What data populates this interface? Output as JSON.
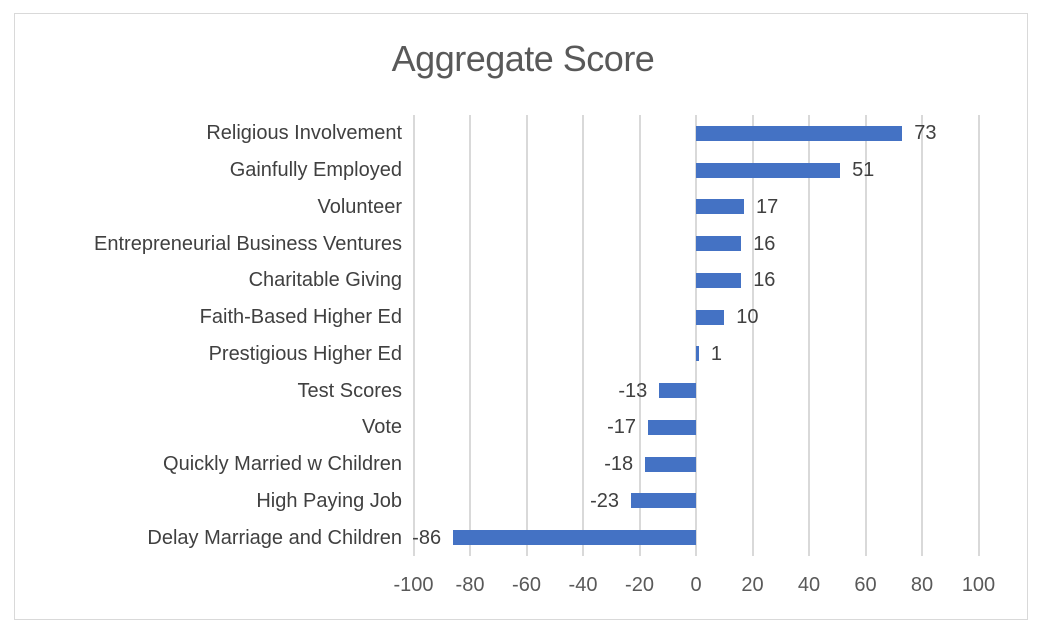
{
  "window": {
    "background": "#FFFFFF",
    "border_color": "#D9D9D9"
  },
  "chart_data": {
    "type": "bar",
    "orientation": "horizontal",
    "title": "Aggregate Score",
    "categories": [
      "Religious Involvement",
      "Gainfully Employed",
      "Volunteer",
      "Entrepreneurial Business Ventures",
      "Charitable Giving",
      "Faith-Based Higher Ed",
      "Prestigious Higher Ed",
      "Test Scores",
      "Vote",
      "Quickly Married w Children",
      "High Paying Job",
      "Delay Marriage and Children"
    ],
    "values": [
      73,
      51,
      17,
      16,
      16,
      10,
      1,
      -13,
      -17,
      -18,
      -23,
      -86
    ],
    "data_labels": [
      "73",
      "51",
      "17",
      "16",
      "16",
      "10",
      "1",
      "-13",
      "-17",
      "-18",
      "-23",
      "-86"
    ],
    "xlim": [
      -100,
      100
    ],
    "xticks": [
      -100,
      -80,
      -60,
      -40,
      -20,
      0,
      20,
      40,
      60,
      80,
      100
    ],
    "xtick_labels": [
      "-100",
      "-80",
      "-60",
      "-40",
      "-20",
      "0",
      "20",
      "40",
      "60",
      "80",
      "100"
    ],
    "grid": "vertical-major",
    "legend": "none",
    "xlabel": "",
    "ylabel": "",
    "colors": {
      "bar": "#4472C4",
      "gridline": "#D9D9D9",
      "title": "#595959",
      "tick_label": "#595959",
      "category_label": "#404040",
      "data_label": "#404040"
    }
  }
}
